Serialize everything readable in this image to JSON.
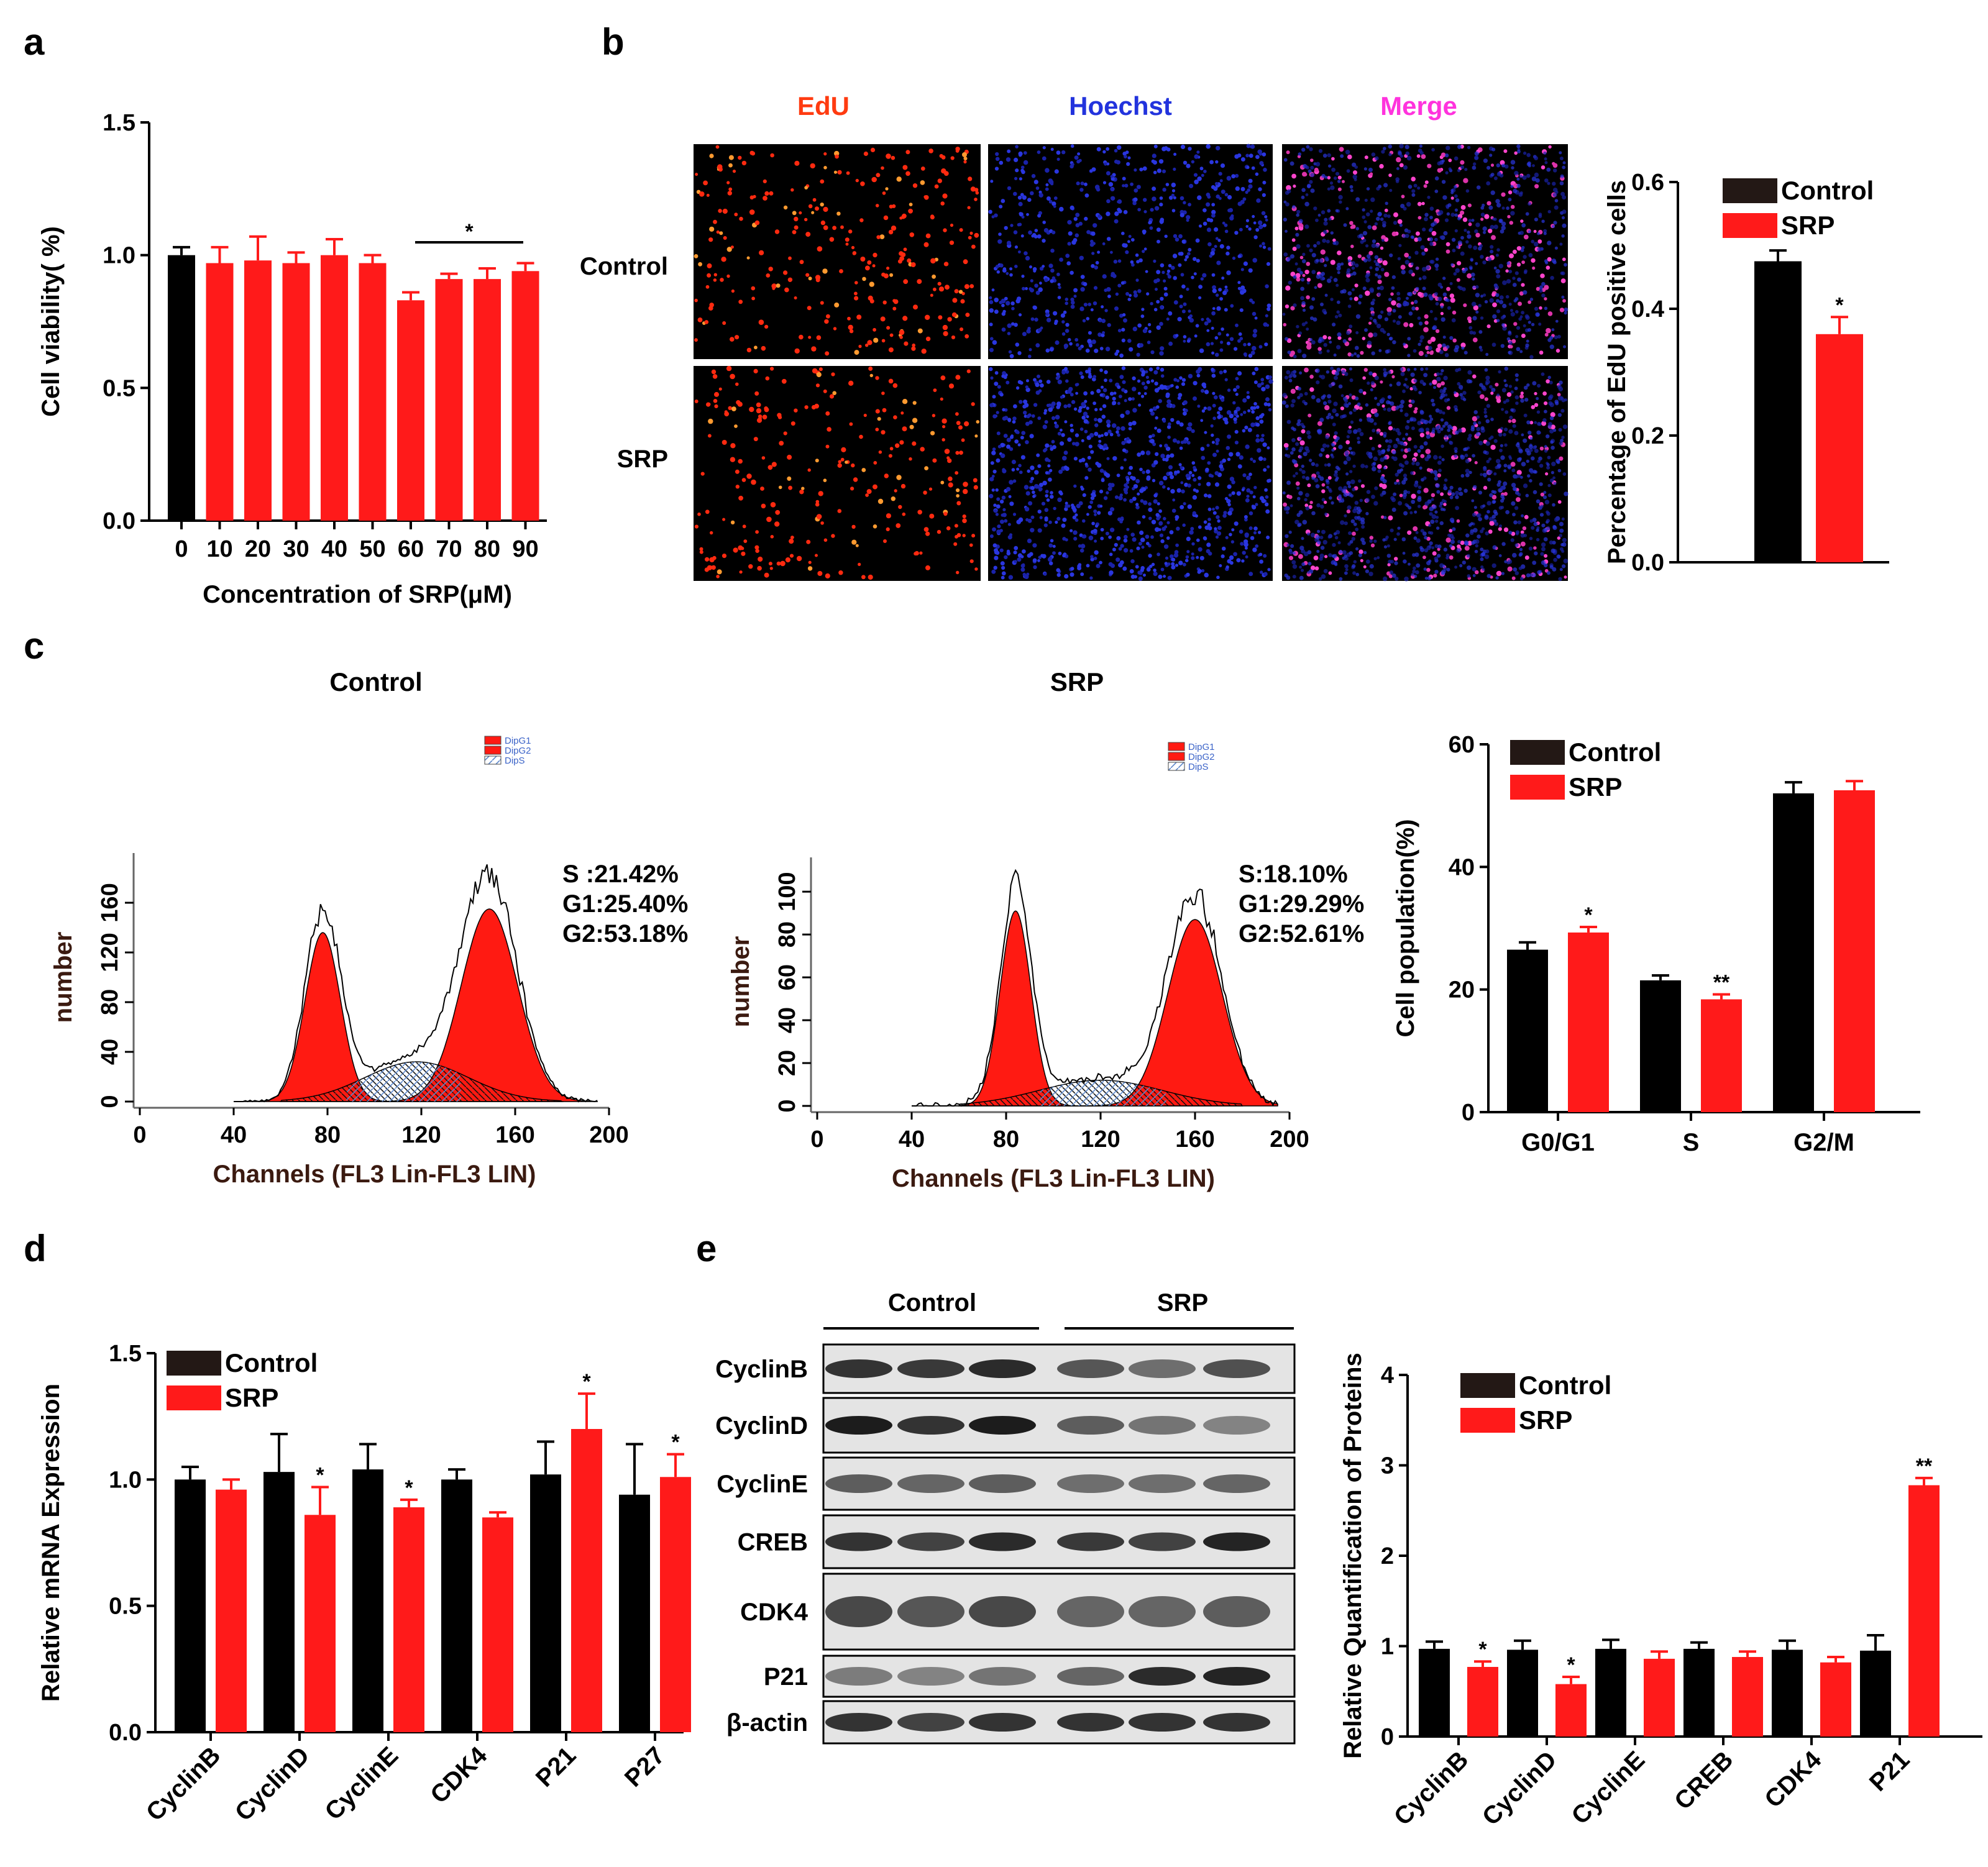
{
  "colors": {
    "control": "#000000",
    "srp": "#ff1a1a",
    "edu": "#ff3b10",
    "hoechst": "#2233dd",
    "merge": "#ff33dd",
    "flow_red": "#ff1a12"
  },
  "panels": {
    "a": {
      "letter": "a"
    },
    "b": {
      "letter": "b",
      "channels": [
        "EdU",
        "Hoechst",
        "Merge"
      ],
      "rows": [
        "Control",
        "SRP"
      ]
    },
    "c": {
      "letter": "c",
      "flow": [
        {
          "title": "Control",
          "ylabel": "number",
          "xlabel": "Channels (FL3 Lin-FL3 LIN)",
          "legend": [
            "DipG1",
            "DipG2",
            "DipS"
          ],
          "stats": [
            "S :21.42%",
            "G1:25.40%",
            "G2:53.18%"
          ],
          "xticks": [
            "0",
            "40",
            "80",
            "120",
            "160",
            "200"
          ],
          "yticks": [
            "0",
            "40",
            "80",
            "120",
            "160"
          ]
        },
        {
          "title": "SRP",
          "ylabel": "number",
          "xlabel": "Channels (FL3 Lin-FL3 LIN)",
          "legend": [
            "DipG1",
            "DipG2",
            "DipS"
          ],
          "stats": [
            "S:18.10%",
            "G1:29.29%",
            "G2:52.61%"
          ],
          "xticks": [
            "0",
            "40",
            "80",
            "120",
            "160",
            "200"
          ],
          "yticks": [
            "0",
            "20",
            "40",
            "60",
            "80",
            "100"
          ]
        }
      ]
    },
    "d": {
      "letter": "d"
    },
    "e": {
      "letter": "e",
      "groups": [
        "Control",
        "SRP"
      ],
      "proteins": [
        "CyclinB",
        "CyclinD",
        "CyclinE",
        "CREB",
        "CDK4",
        "P21",
        "β-actin"
      ]
    }
  },
  "chart_data": [
    {
      "id": "a",
      "type": "bar",
      "title": "",
      "xlabel": "Concentration of SRP(μM)",
      "ylabel": "Cell viability( %)",
      "categories": [
        "0",
        "10",
        "20",
        "30",
        "40",
        "50",
        "60",
        "70",
        "80",
        "90"
      ],
      "values": [
        1.0,
        0.97,
        0.98,
        0.97,
        1.0,
        0.97,
        0.83,
        0.91,
        0.91,
        0.94
      ],
      "errors": [
        0.03,
        0.06,
        0.09,
        0.04,
        0.06,
        0.03,
        0.03,
        0.02,
        0.04,
        0.03
      ],
      "ylim": [
        0,
        1.5
      ],
      "yticks": [
        "0.0",
        "0.5",
        "1.0",
        "1.5"
      ],
      "annotation": "*"
    },
    {
      "id": "b",
      "type": "bar",
      "title": "",
      "xlabel": "",
      "ylabel": "Percentage of EdU positive cells",
      "categories": [
        "Control",
        "SRP"
      ],
      "values": [
        0.475,
        0.36
      ],
      "errors": [
        0.017,
        0.027
      ],
      "ylim": [
        0,
        0.6
      ],
      "yticks": [
        "0.0",
        "0.2",
        "0.4",
        "0.6"
      ],
      "legend": [
        "Control",
        "SRP"
      ],
      "significance": [
        "",
        "*"
      ]
    },
    {
      "id": "c",
      "type": "bar",
      "title": "",
      "xlabel": "",
      "ylabel": "Cell population(%)",
      "categories": [
        "G0/G1",
        "S",
        "G2/M"
      ],
      "series": [
        {
          "name": "Control",
          "values": [
            26.5,
            21.5,
            52
          ],
          "errors": [
            1.2,
            0.8,
            1.8
          ]
        },
        {
          "name": "SRP",
          "values": [
            29.3,
            18.4,
            52.5
          ],
          "errors": [
            0.9,
            0.8,
            1.5
          ]
        }
      ],
      "ylim": [
        0,
        60
      ],
      "yticks": [
        "0",
        "20",
        "40",
        "60"
      ],
      "significance": [
        "*",
        "**",
        ""
      ]
    },
    {
      "id": "d",
      "type": "bar",
      "title": "",
      "xlabel": "",
      "ylabel": "Relative mRNA Expression",
      "categories": [
        "CyclinB",
        "CyclinD",
        "CyclinE",
        "CDK4",
        "P21",
        "P27"
      ],
      "series": [
        {
          "name": "Control",
          "values": [
            1.0,
            1.03,
            1.04,
            1.0,
            1.02,
            0.94
          ],
          "errors": [
            0.05,
            0.15,
            0.1,
            0.04,
            0.13,
            0.2
          ]
        },
        {
          "name": "SRP",
          "values": [
            0.96,
            0.86,
            0.89,
            0.85,
            1.2,
            1.01
          ],
          "errors": [
            0.04,
            0.11,
            0.03,
            0.02,
            0.14,
            0.09
          ]
        }
      ],
      "ylim": [
        0,
        1.5
      ],
      "yticks": [
        "0.0",
        "0.5",
        "1.0",
        "1.5"
      ],
      "significance": [
        "",
        "*",
        "*",
        "",
        "*",
        "*"
      ]
    },
    {
      "id": "e",
      "type": "bar",
      "title": "",
      "xlabel": "",
      "ylabel": "Relative Quantification of Proteins",
      "categories": [
        "CyclinB",
        "CyclinD",
        "CyclinE",
        "CREB",
        "CDK4",
        "P21"
      ],
      "series": [
        {
          "name": "Control",
          "values": [
            0.97,
            0.96,
            0.97,
            0.97,
            0.96,
            0.95
          ],
          "errors": [
            0.08,
            0.1,
            0.1,
            0.07,
            0.1,
            0.17
          ]
        },
        {
          "name": "SRP",
          "values": [
            0.77,
            0.58,
            0.86,
            0.88,
            0.82,
            2.78
          ],
          "errors": [
            0.06,
            0.08,
            0.08,
            0.06,
            0.06,
            0.08
          ]
        }
      ],
      "ylim": [
        0,
        4
      ],
      "yticks": [
        "0",
        "1",
        "2",
        "3",
        "4"
      ],
      "significance": [
        "*",
        "*",
        "",
        "",
        "",
        "**"
      ]
    }
  ]
}
